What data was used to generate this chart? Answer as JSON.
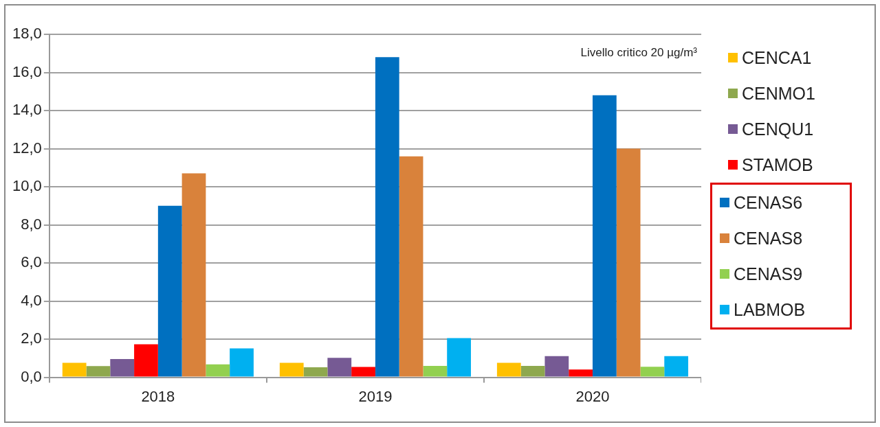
{
  "chart_data": {
    "type": "bar",
    "categories": [
      "2018",
      "2019",
      "2020"
    ],
    "series": [
      {
        "name": "CENCA1",
        "color": "#ffc000",
        "values": [
          0.76,
          0.76,
          0.76
        ]
      },
      {
        "name": "CENMO1",
        "color": "#8ea84e",
        "values": [
          0.59,
          0.53,
          0.6
        ]
      },
      {
        "name": "CENQU1",
        "color": "#765a94",
        "values": [
          0.96,
          1.02,
          1.11
        ]
      },
      {
        "name": "STAMOB",
        "color": "#ff0000",
        "values": [
          1.73,
          0.54,
          0.41
        ]
      },
      {
        "name": "CENAS6",
        "color": "#0070c0",
        "values": [
          9.0,
          16.8,
          14.8
        ]
      },
      {
        "name": "CENAS8",
        "color": "#d9823b",
        "values": [
          10.7,
          11.6,
          12.0
        ]
      },
      {
        "name": "CENAS9",
        "color": "#92d050",
        "values": [
          0.68,
          0.6,
          0.55
        ]
      },
      {
        "name": "LABMOB",
        "color": "#00b0f0",
        "values": [
          1.52,
          2.06,
          1.11
        ]
      }
    ],
    "ylim": [
      0,
      18
    ],
    "yticks": [
      {
        "value": 0,
        "label": "0,0"
      },
      {
        "value": 2,
        "label": "2,0"
      },
      {
        "value": 4,
        "label": "4,0"
      },
      {
        "value": 6,
        "label": "6,0"
      },
      {
        "value": 8,
        "label": "8,0"
      },
      {
        "value": 10,
        "label": "10,0"
      },
      {
        "value": 12,
        "label": "12,0"
      },
      {
        "value": 14,
        "label": "14,0"
      },
      {
        "value": 16,
        "label": "16,0"
      },
      {
        "value": 18,
        "label": "18,0"
      }
    ],
    "grid": "y",
    "legend": "right",
    "annotations": [
      "Livello critico 20 µg/m³"
    ]
  }
}
